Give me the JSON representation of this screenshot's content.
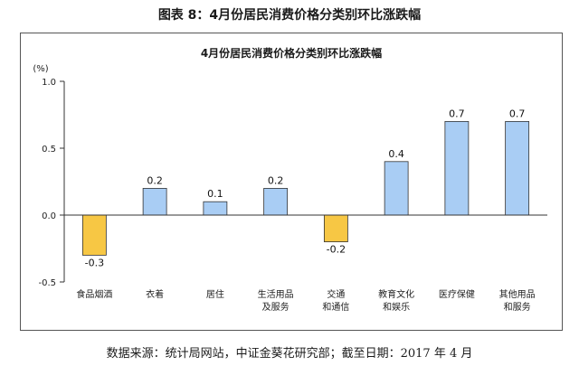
{
  "figure_title": "图表 8：4月份居民消费价格分类别环比涨跌幅",
  "source_note": "数据来源：统计局网站，中证金葵花研究部；截至日期：2017 年 4 月",
  "colors": {
    "positive_bar": "#a9cdf4",
    "negative_bar": "#f7c744",
    "bar_stroke": "#333333",
    "axis": "#333333"
  },
  "chart_data": {
    "type": "bar",
    "title": "4月份居民消费价格分类别环比涨跌幅",
    "ylabel": "(%)",
    "xlabel": "",
    "ylim": [
      -0.5,
      1.0
    ],
    "yticks": [
      -0.5,
      0.0,
      0.5,
      1.0
    ],
    "ytick_labels": [
      "-0.5",
      "0.0",
      "0.5",
      "1.0"
    ],
    "grid": false,
    "legend": "none",
    "categories": [
      [
        "食品烟酒"
      ],
      [
        "衣着"
      ],
      [
        "居住"
      ],
      [
        "生活用品",
        "及服务"
      ],
      [
        "交通",
        "和通信"
      ],
      [
        "教育文化",
        "和娱乐"
      ],
      [
        "医疗保健"
      ],
      [
        "其他用品",
        "和服务"
      ]
    ],
    "values": [
      -0.3,
      0.2,
      0.1,
      0.2,
      -0.2,
      0.4,
      0.7,
      0.7
    ],
    "value_labels": [
      "-0.3",
      "0.2",
      "0.1",
      "0.2",
      "-0.2",
      "0.4",
      "0.7",
      "0.7"
    ]
  }
}
